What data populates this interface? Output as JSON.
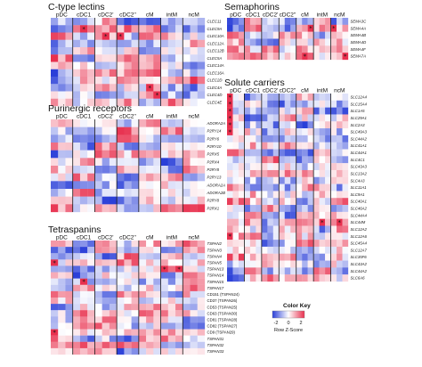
{
  "colors": {
    "low": "#2a3fd8",
    "mid": "#ffffff",
    "high": "#e8304e"
  },
  "chart_data": [
    {
      "type": "heatmap",
      "title": "C-type lectins",
      "columns": [
        "pDC",
        "cDC1",
        "cDC2'",
        "cDC2''",
        "cM",
        "intM",
        "ncM"
      ],
      "subcols": [
        3,
        3,
        3,
        3,
        3,
        3,
        3
      ],
      "rows": [
        "CLEC11",
        "CLEC9A",
        "CLEC10A",
        "CLEC12A",
        "CLEC12B",
        "CLEC5A",
        "CLEC14A",
        "CLEC16A",
        "CLEC2D",
        "CLEC4A",
        "CLEC4D",
        "CLEC4E"
      ],
      "stars": [
        [
          1,
          4
        ],
        [
          2,
          7
        ],
        [
          2,
          9
        ],
        [
          9,
          13
        ],
        [
          10,
          14
        ]
      ]
    },
    {
      "type": "heatmap",
      "title": "Semaphorins",
      "columns": [
        "pDC",
        "cDC1",
        "cDC2'",
        "cDC2''",
        "cM",
        "intM",
        "ncM"
      ],
      "subcols": [
        3,
        3,
        3,
        3,
        3,
        3,
        3
      ],
      "rows": [
        "SEMA3C",
        "SEMA4A",
        "SEMA4B",
        "SEMA4D",
        "SEMA4F",
        "SEMA7A"
      ],
      "stars": [
        [
          1,
          14
        ],
        [
          1,
          18
        ],
        [
          5,
          13
        ],
        [
          5,
          20
        ]
      ]
    },
    {
      "type": "heatmap",
      "title": "Purinergic receptors",
      "columns": [
        "pDC",
        "cDC1",
        "cDC2'",
        "cDC2''",
        "cM",
        "intM",
        "ncM"
      ],
      "subcols": [
        3,
        3,
        3,
        3,
        3,
        3,
        3
      ],
      "rows": [
        "ADORA2A",
        "P2RY14",
        "P2RY6",
        "P2RY10",
        "P2RX5",
        "P2RX4",
        "P2RY8",
        "P2RY13",
        "ADORA2A",
        "ADORA2B",
        "P2RY8",
        "P2RX1"
      ],
      "stars": []
    },
    {
      "type": "heatmap",
      "title": "Solute carriers",
      "columns": [
        "pDC",
        "cDC1",
        "cDC2'",
        "cDC2''",
        "cM",
        "intM",
        "ncM"
      ],
      "subcols": [
        3,
        3,
        3,
        3,
        3,
        3,
        3
      ],
      "rows": [
        "SLC12A4",
        "SLC15A4",
        "SLC1A5",
        "SLC29A1",
        "SLC2A3",
        "SLC49A3",
        "SLC44A2",
        "SLC41A1",
        "SLC44A1",
        "SLC4C1",
        "SLC43A3",
        "SLC13A2",
        "SLC4A3",
        "SLC11A1",
        "SLC9A1",
        "SLC40A1",
        "SLC46A2",
        "SLC44A4",
        "SLC44M",
        "SLC12A2",
        "SLC12A6",
        "SLC45A4",
        "SLC12A7",
        "SLC35F6",
        "SLC43A2",
        "SLC44A2",
        "SLC6A6"
      ],
      "stars": [
        [
          0,
          0
        ],
        [
          1,
          0
        ],
        [
          2,
          0
        ],
        [
          3,
          0
        ],
        [
          4,
          0
        ],
        [
          5,
          0
        ],
        [
          18,
          16
        ],
        [
          18,
          19
        ],
        [
          20,
          0
        ]
      ]
    },
    {
      "type": "heatmap",
      "title": "Tetraspanins",
      "columns": [
        "pDC",
        "cDC1",
        "cDC2'",
        "cDC2''",
        "cM",
        "intM",
        "ncM"
      ],
      "subcols": [
        3,
        3,
        3,
        3,
        3,
        3,
        3
      ],
      "rows": [
        "TSPAN2",
        "TSPAN3",
        "TSPAN4",
        "TSPAN5",
        "TSPAN13",
        "TSPAN14",
        "TSPAN15",
        "TSPAN17",
        "CD151 (TSPAN24)",
        "CD37 (TSPAN26)",
        "CD53 (TSPAN25)",
        "CD63 (TSPAN30)",
        "CD81 (TSPAN28)",
        "CD82 (TSPAN27)",
        "CD9 (TSPAN29)",
        "TSPAN31",
        "TSPAN32",
        "TSPAN33"
      ],
      "stars": [
        [
          3,
          0
        ],
        [
          4,
          15
        ],
        [
          4,
          17
        ],
        [
          6,
          4
        ],
        [
          14,
          0
        ]
      ]
    }
  ],
  "color_key": {
    "title": "Color Key",
    "ticks": [
      "-2",
      "0",
      "2"
    ],
    "label": "Row Z-Score"
  }
}
